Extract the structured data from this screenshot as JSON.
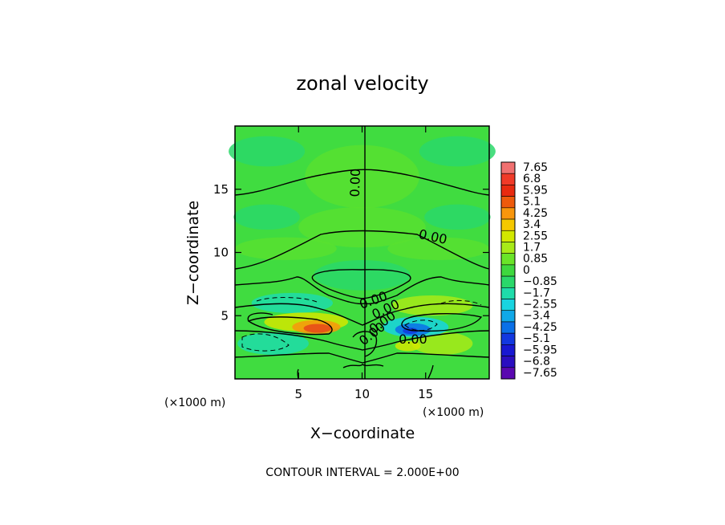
{
  "chart_data": {
    "type": "heatmap",
    "title": "zonal velocity",
    "xlabel": "X−coordinate",
    "ylabel": "Z−coordinate",
    "x_unit_label": "(×1000 m)",
    "y_unit_label": "(×1000 m)",
    "xlim": [
      0,
      20
    ],
    "ylim": [
      0,
      20
    ],
    "x_ticks": [
      5,
      10,
      15
    ],
    "y_ticks": [
      5,
      10,
      15
    ],
    "x_tick_labels": [
      "5",
      "10",
      "15"
    ],
    "y_tick_labels": [
      "5",
      "10",
      "15"
    ],
    "colorbar_labels": [
      "7.65",
      "6.8",
      "5.95",
      "5.1",
      "4.25",
      "3.4",
      "2.55",
      "1.7",
      "0.85",
      "0",
      "−0.85",
      "−1.7",
      "−2.55",
      "−3.4",
      "−4.25",
      "−5.1",
      "−5.95",
      "−6.8",
      "−7.65"
    ],
    "colorbar_colors": [
      "#f07070",
      "#f03a28",
      "#e82a10",
      "#ee5a0c",
      "#f8960c",
      "#f5c800",
      "#d2e800",
      "#a8ea18",
      "#6ae428",
      "#3ed83e",
      "#2ad86a",
      "#1edcaa",
      "#18d4e0",
      "#10a8e8",
      "#0a70e8",
      "#1238e0",
      "#1818d2",
      "#2a0ec0",
      "#5a08b0"
    ],
    "contour_interval_text": "CONTOUR INTERVAL = 2.000E+00",
    "contour_labels": [
      {
        "text": "0.00",
        "x": 9.8,
        "z": 15.5,
        "angle": -88
      },
      {
        "text": "0.00",
        "x": 15.5,
        "z": 10.9,
        "angle": 12
      },
      {
        "text": "0.00",
        "x": 11.0,
        "z": 5.9,
        "angle": -20
      },
      {
        "text": "0.00",
        "x": 12.0,
        "z": 5.2,
        "angle": -25
      },
      {
        "text": "0.00",
        "x": 11.8,
        "z": 4.2,
        "angle": -35
      },
      {
        "text": "0.00",
        "x": 11.0,
        "z": 3.3,
        "angle": -38
      },
      {
        "text": "0.00",
        "x": 14.0,
        "z": 2.8,
        "angle": 0
      }
    ],
    "features": [
      {
        "name": "positive-jet-left",
        "x": 6.5,
        "z": 4.0,
        "peak": 5.5
      },
      {
        "name": "negative-jet-right",
        "x": 14.0,
        "z": 3.8,
        "peak": -4.5
      },
      {
        "name": "negative-lobe-left-upper",
        "x": 4.5,
        "z": 6.0,
        "peak": -1.9
      },
      {
        "name": "negative-lobe-left-lower",
        "x": 3.0,
        "z": 2.8,
        "peak": -2.6
      },
      {
        "name": "positive-lobe-right-upper",
        "x": 15.5,
        "z": 5.8,
        "peak": 2.0
      },
      {
        "name": "positive-lobe-right-lower",
        "x": 16.3,
        "z": 2.8,
        "peak": 2.3
      }
    ]
  }
}
